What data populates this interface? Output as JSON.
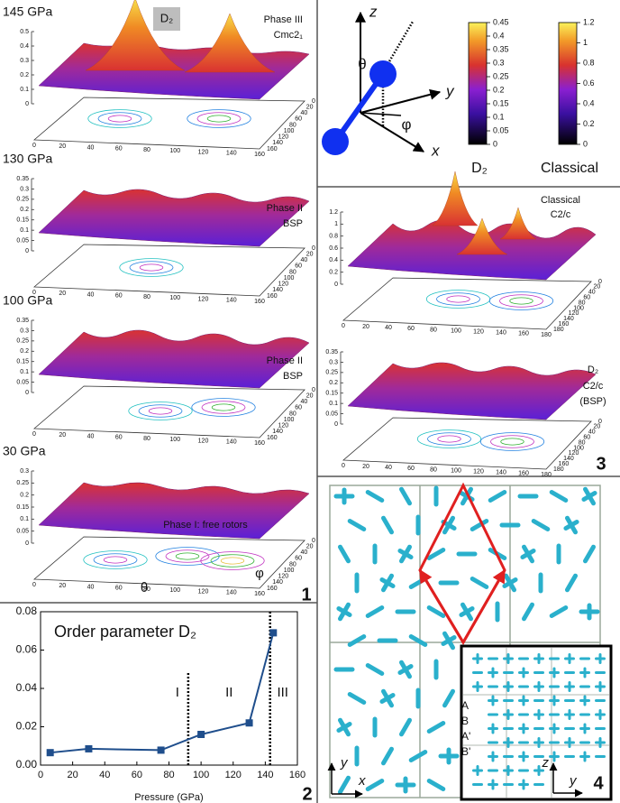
{
  "panel1": {
    "number": "1",
    "header": "D₂",
    "floor_ticks": [
      0,
      20,
      40,
      60,
      80,
      100,
      120,
      140,
      160
    ],
    "angle_labels": [
      "θ",
      "φ"
    ],
    "surfaces": [
      {
        "pressure": "145 GPa",
        "phase": "Phase III",
        "structure": "Cmc2₁",
        "zlim": [
          0,
          0.5
        ],
        "zticks": [
          0,
          0.1,
          0.2,
          0.3,
          0.4,
          0.5
        ]
      },
      {
        "pressure": "130 GPa",
        "phase": "Phase II",
        "structure": "BSP",
        "zlim": [
          0,
          0.35
        ],
        "zticks": [
          0,
          0.05,
          0.1,
          0.15,
          0.2,
          0.25,
          0.3,
          0.35
        ]
      },
      {
        "pressure": "100 GPa",
        "phase": "Phase II",
        "structure": "BSP",
        "zlim": [
          0,
          0.35
        ],
        "zticks": [
          0,
          0.05,
          0.1,
          0.15,
          0.2,
          0.25,
          0.3,
          0.35
        ]
      },
      {
        "pressure": "30 GPa",
        "phase": "Phase I: free rotors",
        "zlim": [
          0,
          0.3
        ],
        "zticks": [
          0,
          0.05,
          0.1,
          0.15,
          0.2,
          0.25,
          0.3
        ]
      }
    ]
  },
  "chart_data": {
    "type": "line",
    "title": "Order parameter D₂",
    "x_label": "Pressure (GPa)",
    "x": [
      6,
      30,
      75,
      100,
      130,
      145
    ],
    "values": [
      0.0065,
      0.0085,
      0.0078,
      0.016,
      0.022,
      0.069
    ],
    "color": "#1f4e8c",
    "xlim": [
      0,
      160
    ],
    "xticks": [
      0,
      20,
      40,
      60,
      80,
      100,
      120,
      140,
      160
    ],
    "ylim": [
      0,
      0.08
    ],
    "yticks": [
      {
        "value": 0,
        "label": "0.00"
      },
      0.02,
      0.04,
      0.06,
      0.08
    ],
    "phase_boundaries": [
      92,
      143
    ],
    "phase_labels": [
      "I",
      "II",
      "III"
    ],
    "panel_number": "2"
  },
  "orientation": {
    "axes": [
      "z",
      "y",
      "x"
    ],
    "angles": [
      "θ",
      "φ"
    ],
    "colorbars": [
      {
        "label": "D₂",
        "lim": [
          0,
          0.45
        ],
        "ticks": [
          0,
          0.05,
          0.1,
          0.15,
          0.2,
          0.25,
          0.3,
          0.35,
          0.4,
          0.45
        ]
      },
      {
        "label": "Classical",
        "lim": [
          0,
          1.2
        ],
        "ticks": [
          0,
          0.2,
          0.4,
          0.6,
          0.8,
          1,
          1.2
        ]
      }
    ]
  },
  "panel3": {
    "number": "3",
    "floor_ticks": [
      0,
      20,
      40,
      60,
      80,
      100,
      120,
      140,
      160,
      180
    ],
    "surfaces": [
      {
        "label": "Classical",
        "structure": "C2/c",
        "zlim": [
          0,
          1.2
        ],
        "zticks": [
          0,
          0.2,
          0.4,
          0.6,
          0.8,
          1,
          1.2
        ]
      },
      {
        "label": "D₂",
        "structure": "C2/c",
        "note": "(BSP)",
        "zlim": [
          0,
          0.35
        ],
        "zticks": [
          0,
          0.05,
          0.1,
          0.15,
          0.2,
          0.25,
          0.3,
          0.35
        ]
      }
    ]
  },
  "panel4": {
    "number": "4",
    "layers": [
      "A",
      "B",
      "A'",
      "B'"
    ],
    "axes": [
      "y",
      "x",
      "z",
      "y"
    ]
  }
}
